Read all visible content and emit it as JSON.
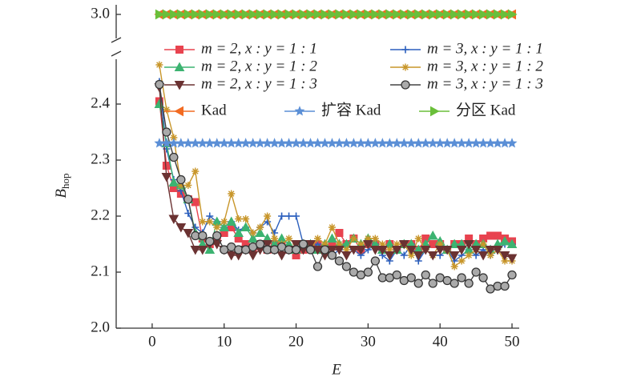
{
  "chart_data": {
    "type": "line",
    "xlabel": "E",
    "ylabel": "B",
    "ylabel_sub": "hop",
    "x": [
      1,
      2,
      3,
      4,
      5,
      6,
      7,
      8,
      9,
      10,
      11,
      12,
      13,
      14,
      15,
      16,
      17,
      18,
      19,
      20,
      21,
      22,
      23,
      24,
      25,
      26,
      27,
      28,
      29,
      30,
      31,
      32,
      33,
      34,
      35,
      36,
      37,
      38,
      39,
      40,
      41,
      42,
      43,
      44,
      45,
      46,
      47,
      48,
      49,
      50
    ],
    "xlim": [
      -5,
      51
    ],
    "xticks": [
      0,
      10,
      20,
      30,
      40,
      50
    ],
    "ylim": [
      2.0,
      2.48
    ],
    "yticks": [
      {
        "value": 2,
        "label": "2.0"
      },
      2.1,
      2.2,
      2.3,
      2.4
    ],
    "ylim_top": [
      2.95,
      3.02
    ],
    "yticks_top": [
      {
        "value": 3,
        "label": "3.0"
      }
    ],
    "series": [
      {
        "name": "m = 2, x : y = 1 : 1",
        "color": "#e8434f",
        "marker": "square",
        "values": [
          2.405,
          2.29,
          2.25,
          2.24,
          2.23,
          2.225,
          2.16,
          2.15,
          2.16,
          2.17,
          2.18,
          2.16,
          2.15,
          2.14,
          2.15,
          2.14,
          2.15,
          2.15,
          2.14,
          2.13,
          2.14,
          2.15,
          2.15,
          2.14,
          2.15,
          2.17,
          2.15,
          2.16,
          2.14,
          2.15,
          2.15,
          2.14,
          2.15,
          2.14,
          2.15,
          2.15,
          2.14,
          2.16,
          2.15,
          2.15,
          2.14,
          2.15,
          2.15,
          2.16,
          2.15,
          2.16,
          2.165,
          2.165,
          2.16,
          2.155
        ]
      },
      {
        "name": "m = 3, x : y = 1 : 1",
        "color": "#2b5fbd",
        "marker": "plus",
        "values": [
          2.44,
          2.32,
          2.265,
          2.245,
          2.205,
          2.18,
          2.17,
          2.2,
          2.19,
          2.18,
          2.19,
          2.175,
          2.18,
          2.17,
          2.18,
          2.19,
          2.17,
          2.2,
          2.2,
          2.2,
          2.15,
          2.14,
          2.15,
          2.14,
          2.13,
          2.14,
          2.15,
          2.14,
          2.13,
          2.14,
          2.15,
          2.13,
          2.12,
          2.14,
          2.13,
          2.15,
          2.12,
          2.14,
          2.13,
          2.13,
          2.14,
          2.12,
          2.13,
          2.14,
          2.13,
          2.14,
          2.13,
          2.14,
          2.15,
          2.15
        ]
      },
      {
        "name": "m = 2, x : y = 1 : 2",
        "color": "#3cb371",
        "marker": "tri-up",
        "values": [
          2.4,
          2.33,
          2.26,
          2.255,
          2.23,
          2.17,
          2.15,
          2.14,
          2.19,
          2.18,
          2.19,
          2.17,
          2.18,
          2.16,
          2.17,
          2.16,
          2.15,
          2.16,
          2.15,
          2.14,
          2.15,
          2.15,
          2.14,
          2.15,
          2.16,
          2.15,
          2.15,
          2.16,
          2.15,
          2.16,
          2.15,
          2.14,
          2.15,
          2.14,
          2.15,
          2.15,
          2.14,
          2.15,
          2.165,
          2.155,
          2.14,
          2.15,
          2.15,
          2.14,
          2.15,
          2.15,
          2.14,
          2.15,
          2.155,
          2.15
        ]
      },
      {
        "name": "m = 3, x : y = 1 : 2",
        "color": "#c8962a",
        "marker": "asterisk",
        "values": [
          2.47,
          2.39,
          2.34,
          2.255,
          2.255,
          2.28,
          2.19,
          2.19,
          2.18,
          2.19,
          2.24,
          2.195,
          2.195,
          2.17,
          2.18,
          2.2,
          2.16,
          2.15,
          2.16,
          2.15,
          2.15,
          2.14,
          2.16,
          2.15,
          2.18,
          2.15,
          2.14,
          2.16,
          2.15,
          2.16,
          2.16,
          2.15,
          2.14,
          2.15,
          2.15,
          2.13,
          2.16,
          2.14,
          2.13,
          2.15,
          2.14,
          2.11,
          2.12,
          2.13,
          2.14,
          2.15,
          2.13,
          2.14,
          2.12,
          2.12
        ]
      },
      {
        "name": "m = 2, x : y = 1 : 3",
        "color": "#6b3232",
        "marker": "tri-down",
        "values": [
          2.43,
          2.27,
          2.195,
          2.18,
          2.17,
          2.14,
          2.14,
          2.15,
          2.15,
          2.14,
          2.13,
          2.13,
          2.14,
          2.13,
          2.14,
          2.15,
          2.14,
          2.13,
          2.14,
          2.15,
          2.14,
          2.15,
          2.14,
          2.13,
          2.14,
          2.14,
          2.13,
          2.14,
          2.14,
          2.15,
          2.14,
          2.14,
          2.13,
          2.14,
          2.15,
          2.14,
          2.13,
          2.14,
          2.13,
          2.14,
          2.14,
          2.13,
          2.14,
          2.15,
          2.14,
          2.13,
          2.14,
          2.14,
          2.13,
          2.125
        ]
      },
      {
        "name": "m = 3, x : y = 1 : 3",
        "color": "#444444",
        "marker": "circle",
        "values": [
          2.435,
          2.35,
          2.305,
          2.265,
          2.23,
          2.165,
          2.165,
          2.155,
          2.165,
          2.14,
          2.145,
          2.14,
          2.14,
          2.145,
          2.15,
          2.14,
          2.14,
          2.145,
          2.14,
          2.14,
          2.15,
          2.14,
          2.11,
          2.14,
          2.13,
          2.12,
          2.11,
          2.1,
          2.095,
          2.1,
          2.12,
          2.09,
          2.09,
          2.095,
          2.085,
          2.09,
          2.08,
          2.095,
          2.08,
          2.09,
          2.085,
          2.08,
          2.09,
          2.08,
          2.1,
          2.09,
          2.07,
          2.075,
          2.075,
          2.095
        ]
      },
      {
        "name": "Kad",
        "color": "#f26b22",
        "marker": "tri-left",
        "axis": "top",
        "values": [
          3,
          3,
          3,
          3,
          3,
          3,
          3,
          3,
          3,
          3,
          3,
          3,
          3,
          3,
          3,
          3,
          3,
          3,
          3,
          3,
          3,
          3,
          3,
          3,
          3,
          3,
          3,
          3,
          3,
          3,
          3,
          3,
          3,
          3,
          3,
          3,
          3,
          3,
          3,
          3,
          3,
          3,
          3,
          3,
          3,
          3,
          3,
          3,
          3,
          3
        ]
      },
      {
        "name": "扩容 Kad",
        "color": "#5b8fd6",
        "marker": "star",
        "values": [
          2.33,
          2.33,
          2.33,
          2.33,
          2.33,
          2.33,
          2.33,
          2.33,
          2.33,
          2.33,
          2.33,
          2.33,
          2.33,
          2.33,
          2.33,
          2.33,
          2.33,
          2.33,
          2.33,
          2.33,
          2.33,
          2.33,
          2.33,
          2.33,
          2.33,
          2.33,
          2.33,
          2.33,
          2.33,
          2.33,
          2.33,
          2.33,
          2.33,
          2.33,
          2.33,
          2.33,
          2.33,
          2.33,
          2.33,
          2.33,
          2.33,
          2.33,
          2.33,
          2.33,
          2.33,
          2.33,
          2.33,
          2.33,
          2.33,
          2.33
        ]
      },
      {
        "name": "分区 Kad",
        "color": "#6abf3a",
        "marker": "tri-right",
        "axis": "top",
        "values": [
          3,
          3,
          3,
          3,
          3,
          3,
          3,
          3,
          3,
          3,
          3,
          3,
          3,
          3,
          3,
          3,
          3,
          3,
          3,
          3,
          3,
          3,
          3,
          3,
          3,
          3,
          3,
          3,
          3,
          3,
          3,
          3,
          3,
          3,
          3,
          3,
          3,
          3,
          3,
          3,
          3,
          3,
          3,
          3,
          3,
          3,
          3,
          3,
          3,
          3
        ]
      }
    ]
  }
}
